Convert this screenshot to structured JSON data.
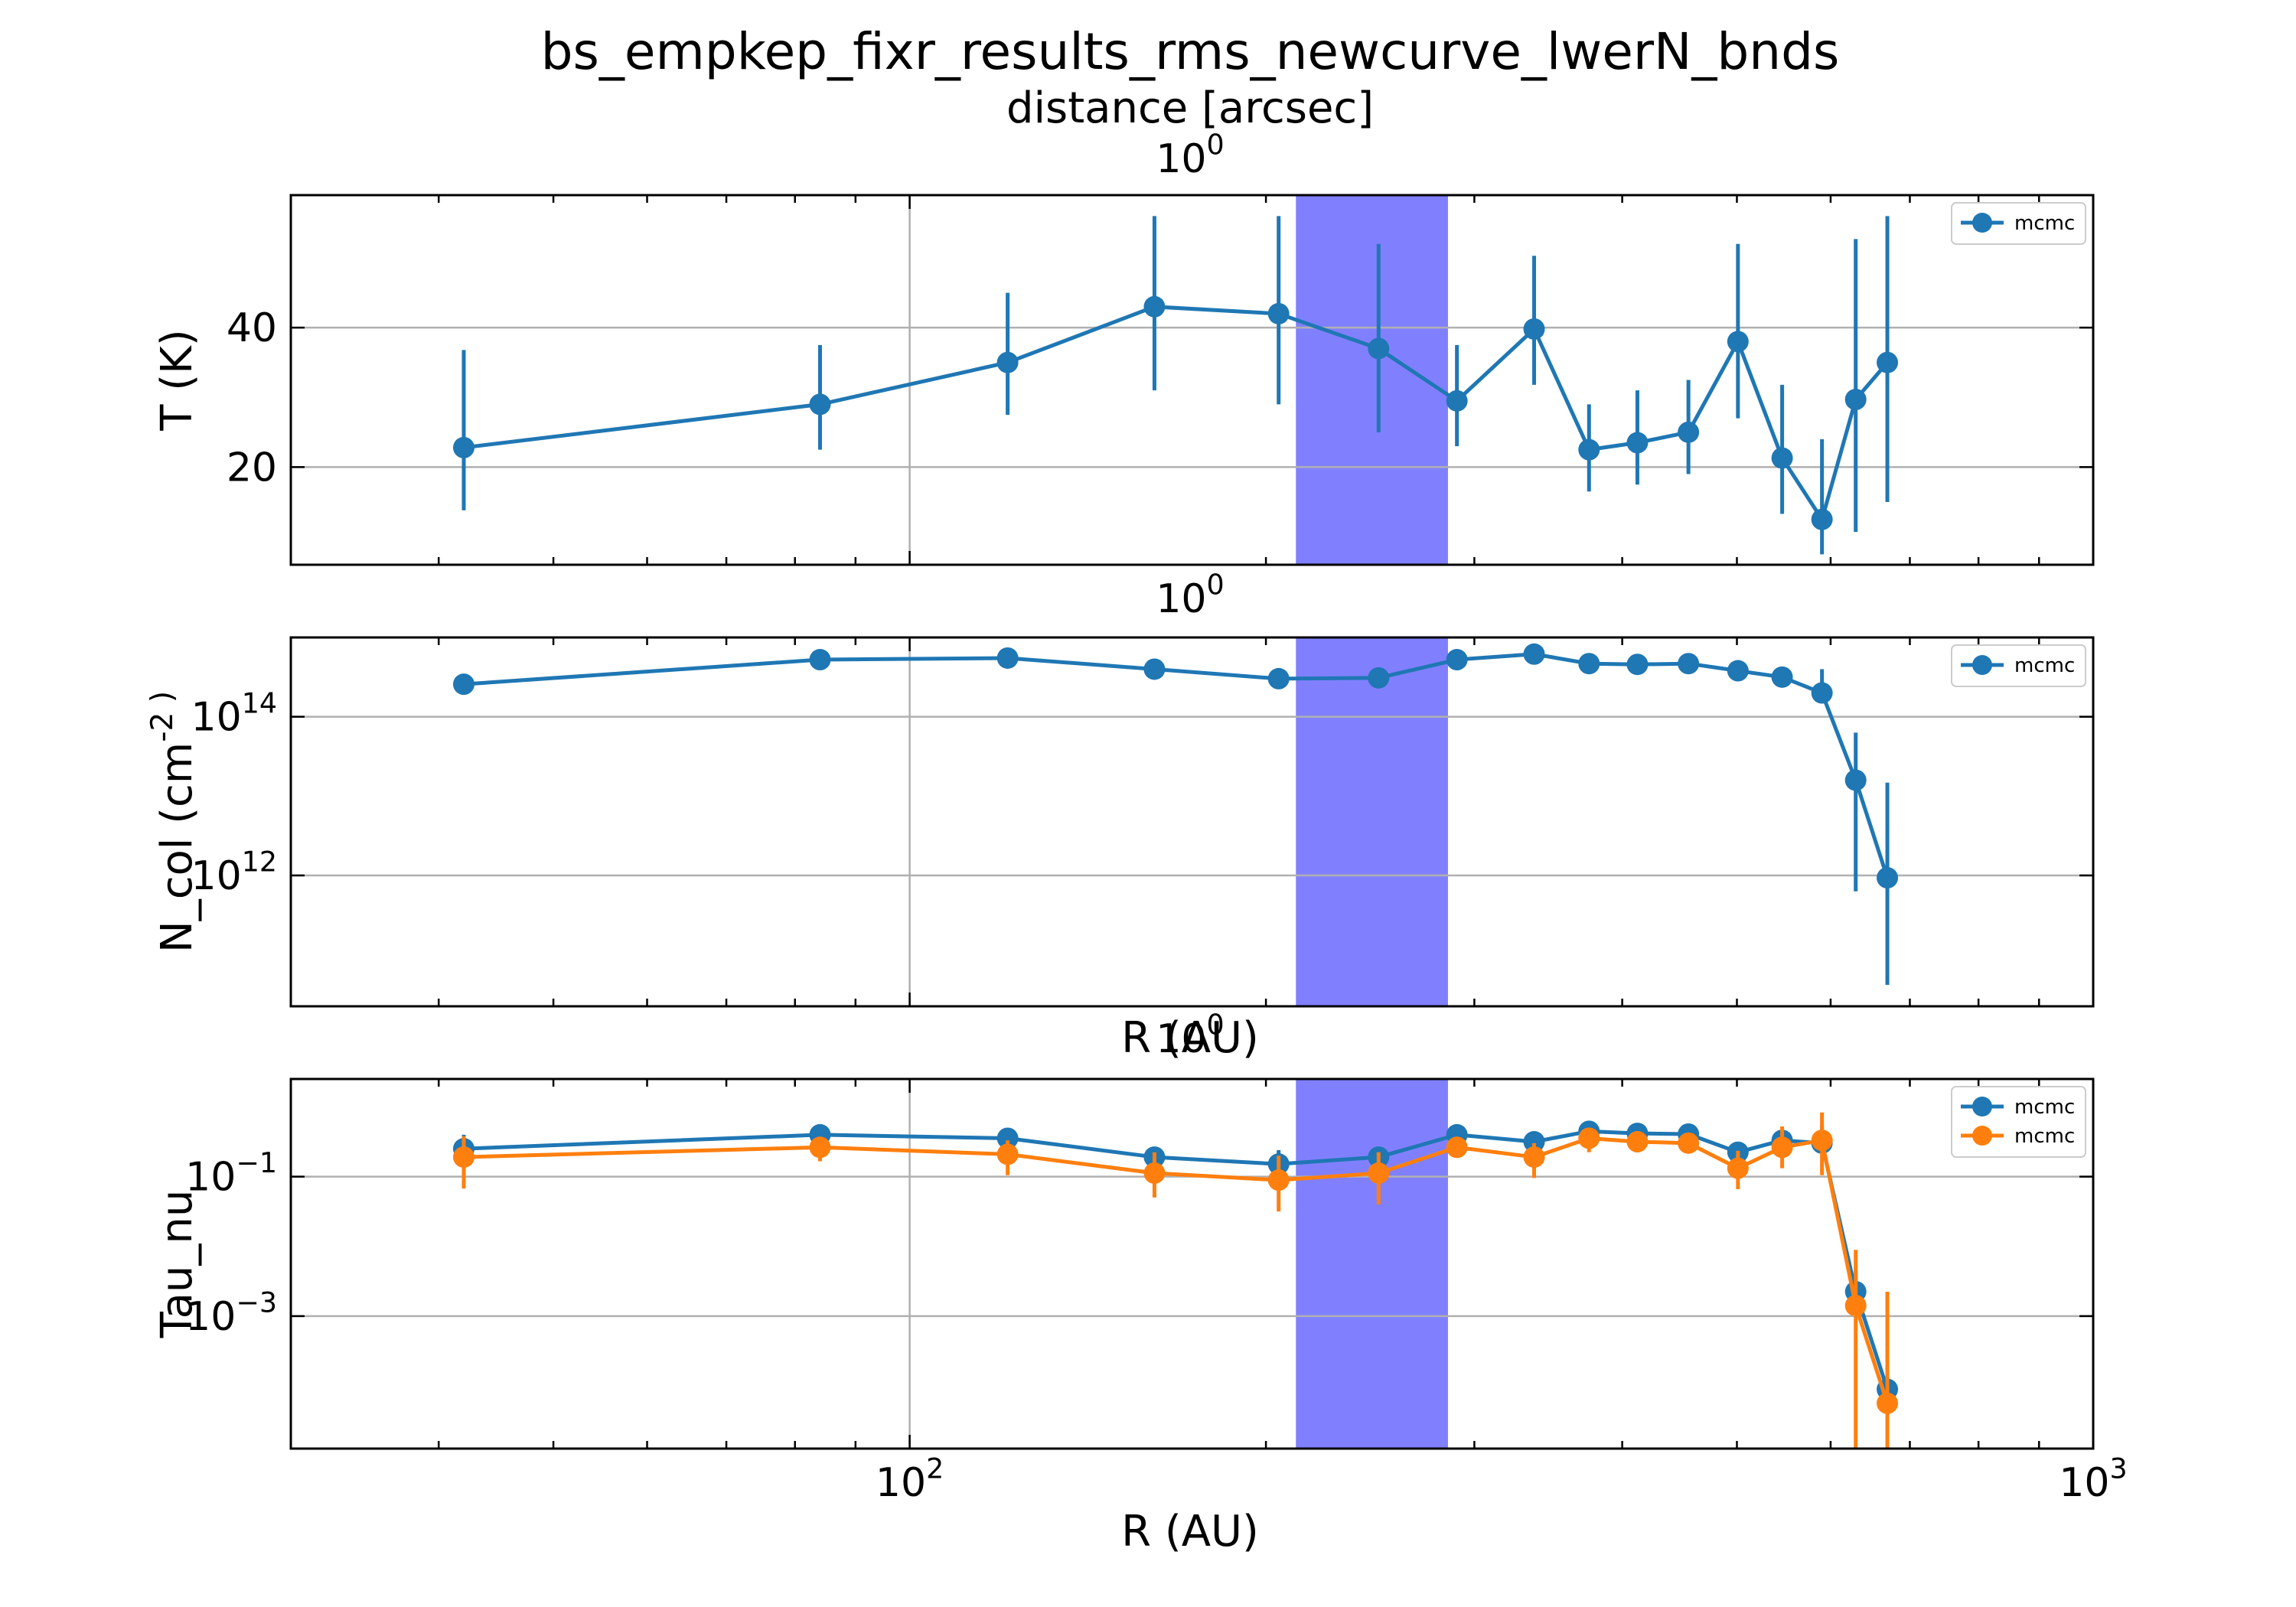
{
  "title": "bs_empkep_fixr_results_rms_newcurve_lwerN_bnds",
  "top_axis_label": "distance [arcsec]",
  "panel_top_tick": "10^0",
  "colors": {
    "series_blue": "#1f77b4",
    "series_orange": "#ff7f0e",
    "shade": "#8080ff",
    "grid": "#b0b0b0"
  },
  "chart_data": [
    {
      "type": "line",
      "panel": "temperature",
      "ylabel": "T (K)",
      "xlabel": "",
      "xscale": "log",
      "yscale": "linear",
      "xlim": [
        30,
        1000
      ],
      "ylim": [
        6,
        59
      ],
      "yticks": [
        20,
        40
      ],
      "grid": true,
      "legend": "top-right",
      "shaded_region": [
        212,
        285
      ],
      "x": [
        42,
        84,
        121,
        161,
        205,
        249,
        290,
        337,
        375,
        412,
        455,
        501,
        546,
        590,
        630,
        670
      ],
      "series": [
        {
          "name": "mcmc",
          "color": "#1f77b4",
          "values": [
            22.8,
            29.0,
            35.0,
            43.0,
            42.0,
            37.0,
            29.5,
            39.8,
            22.5,
            23.5,
            25.0,
            38.0,
            21.3,
            12.5,
            29.7,
            35.0
          ],
          "err_low": [
            9,
            6.5,
            7.5,
            12,
            13,
            12,
            6.5,
            8,
            6,
            6,
            6,
            11,
            8,
            5,
            19,
            20
          ],
          "err_high": [
            14,
            8.5,
            10,
            13,
            14,
            15,
            8,
            10.5,
            6.5,
            7.5,
            7.5,
            14,
            10.5,
            11.5,
            23,
            21
          ]
        }
      ]
    },
    {
      "type": "line",
      "panel": "column_density",
      "ylabel": "N_col (cm^-2 )",
      "xlabel": "R (AU)",
      "xscale": "log",
      "yscale": "log",
      "xlim": [
        30,
        1000
      ],
      "ylim": [
        10.35,
        15.0
      ],
      "yticks": [
        12,
        14
      ],
      "ytick_labels": [
        "10^12",
        "10^14"
      ],
      "grid": true,
      "legend": "top-right",
      "shaded_region": [
        212,
        285
      ],
      "x": [
        42,
        84,
        121,
        161,
        205,
        249,
        290,
        337,
        375,
        412,
        455,
        501,
        546,
        590,
        630,
        670
      ],
      "series": [
        {
          "name": "mcmc",
          "color": "#1f77b4",
          "log10_values": [
            14.41,
            14.72,
            14.74,
            14.6,
            14.48,
            14.49,
            14.72,
            14.79,
            14.67,
            14.66,
            14.67,
            14.58,
            14.5,
            14.3,
            13.2,
            11.97
          ],
          "log_err_low": [
            0,
            0,
            0,
            0,
            0,
            0,
            0,
            0,
            0,
            0,
            0,
            0,
            0,
            0.1,
            1.4,
            1.35
          ],
          "log_err_high": [
            0,
            0,
            0,
            0,
            0,
            0,
            0,
            0,
            0,
            0,
            0,
            0,
            0,
            0.3,
            0.6,
            1.2
          ]
        }
      ]
    },
    {
      "type": "line",
      "panel": "optical_depth",
      "ylabel": "Tau_nu",
      "xlabel": "R (AU)",
      "xscale": "log",
      "yscale": "log",
      "xlim": [
        30,
        1000
      ],
      "xticks": [
        100,
        1000
      ],
      "xtick_labels": [
        "10^2",
        "10^3"
      ],
      "ylim": [
        -4.9,
        0.4
      ],
      "yticks": [
        -1,
        -3
      ],
      "ytick_labels": [
        "10^−1",
        "10^−3"
      ],
      "grid": true,
      "legend": "top-right",
      "shaded_region": [
        212,
        285
      ],
      "x": [
        42,
        84,
        121,
        161,
        205,
        249,
        290,
        337,
        375,
        412,
        455,
        501,
        546,
        590,
        630,
        670
      ],
      "series": [
        {
          "name": "mcmc",
          "color": "#1f77b4",
          "log10_values": [
            -0.6,
            -0.4,
            -0.45,
            -0.72,
            -0.82,
            -0.72,
            -0.4,
            -0.5,
            -0.35,
            -0.38,
            -0.39,
            -0.65,
            -0.48,
            -0.52,
            -2.65,
            -4.05
          ],
          "log_err_low": [
            0.1,
            0.1,
            0.1,
            0.1,
            0.1,
            0.1,
            0.1,
            0.1,
            0.1,
            0.1,
            0.1,
            0.15,
            0.15,
            0.15,
            0.3,
            0.2
          ],
          "log_err_high": [
            0.2,
            0.1,
            0.1,
            0.15,
            0.2,
            0.15,
            0.1,
            0.1,
            0.15,
            0.12,
            0.12,
            0.12,
            0.15,
            0.25,
            0.3,
            0.2
          ]
        },
        {
          "name": "mcmc",
          "color": "#ff7f0e",
          "log10_values": [
            -0.72,
            -0.58,
            -0.68,
            -0.95,
            -1.05,
            -0.95,
            -0.58,
            -0.72,
            -0.45,
            -0.5,
            -0.52,
            -0.88,
            -0.58,
            -0.48,
            -2.85,
            -4.25
          ],
          "log_err_low": [
            0.45,
            0.2,
            0.3,
            0.35,
            0.45,
            0.45,
            0.12,
            0.3,
            0.2,
            0.15,
            0.15,
            0.3,
            0.3,
            0.5,
            2.4,
            2.0
          ],
          "log_err_high": [
            0.3,
            0.15,
            0.2,
            0.3,
            0.35,
            0.3,
            0.12,
            0.2,
            0.15,
            0.12,
            0.12,
            0.25,
            0.3,
            0.4,
            0.8,
            1.6
          ]
        }
      ]
    }
  ]
}
